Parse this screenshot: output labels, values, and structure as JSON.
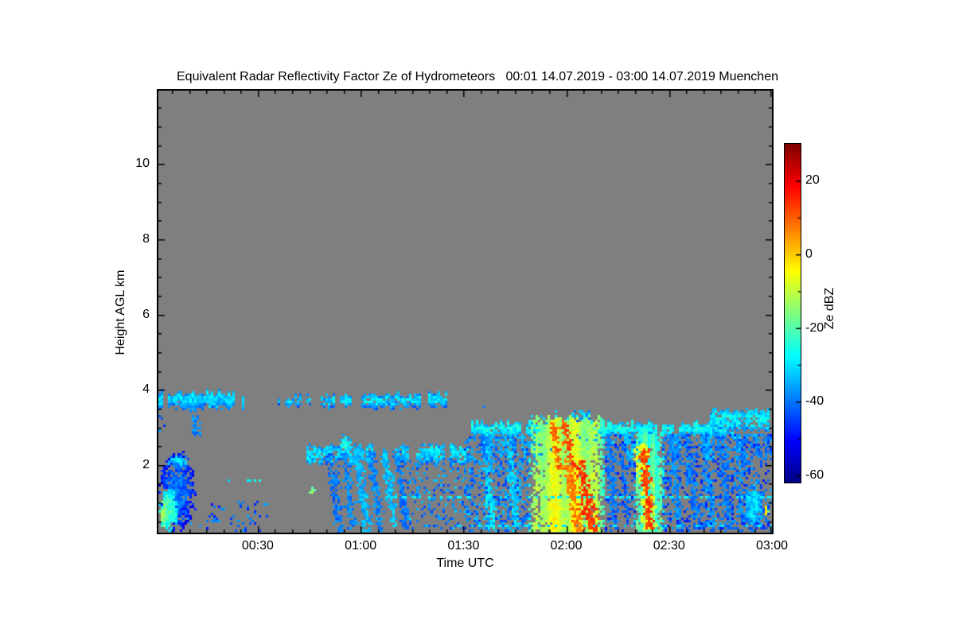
{
  "chart_data": {
    "type": "heatmap",
    "title": "Equivalent Radar Reflectivity Factor Ze of Hydrometeors   00:01 14.07.2019 - 03:00 14.07.2019 Muenchen",
    "xlabel": "Time UTC",
    "ylabel": "Height AGL km",
    "colorbar_label": "Ze dBZ",
    "location": "Muenchen",
    "time_start": "00:01 14.07.2019",
    "time_end": "03:00 14.07.2019",
    "x_range_minutes": [
      1,
      180
    ],
    "y_range_km": [
      0.2,
      11.95
    ],
    "x_ticks": [
      {
        "label": "00:30",
        "t": 30
      },
      {
        "label": "01:00",
        "t": 60
      },
      {
        "label": "01:30",
        "t": 90
      },
      {
        "label": "02:00",
        "t": 120
      },
      {
        "label": "02:30",
        "t": 150
      },
      {
        "label": "03:00",
        "t": 180
      }
    ],
    "x_major_ticks_minutes": [
      30,
      60,
      90,
      120,
      150,
      180
    ],
    "x_minor_step_minutes": 5,
    "y_ticks": [
      {
        "label": "10",
        "h": 10
      },
      {
        "label": "8",
        "h": 8
      },
      {
        "label": "6",
        "h": 6
      },
      {
        "label": "4",
        "h": 4
      },
      {
        "label": "2",
        "h": 2
      }
    ],
    "y_major_ticks_km": [
      2,
      4,
      6,
      8,
      10
    ],
    "y_minor_step_km": 0.5,
    "no_data_color": "#7f7f7f",
    "axis_color": "#000000",
    "background_color": "#ffffff",
    "colorbar": {
      "range_dbz": [
        -62,
        30
      ],
      "ticks": [
        {
          "label": "20",
          "v": 20
        },
        {
          "label": "0",
          "v": 0
        },
        {
          "label": "-20",
          "v": -20
        },
        {
          "label": "-40",
          "v": -40
        },
        {
          "label": "-60",
          "v": -60
        }
      ],
      "minor_ticks": [
        10,
        -10,
        -30,
        -50
      ]
    },
    "colormap_stops": [
      {
        "v": -62,
        "color": "#000083"
      },
      {
        "v": -50.5,
        "color": "#0000ff"
      },
      {
        "v": -27.5,
        "color": "#00ffff"
      },
      {
        "v": -4.5,
        "color": "#ffff00"
      },
      {
        "v": 18.5,
        "color": "#ff0000"
      },
      {
        "v": 30,
        "color": "#800000"
      }
    ],
    "features": [
      {
        "type": "layer",
        "t": [
          1,
          27
        ],
        "h": [
          3.55,
          3.92
        ],
        "v": -31,
        "density": 0.95,
        "gap": 0.05
      },
      {
        "type": "streak",
        "line": [
          11,
          3.6,
          11.8,
          2.78
        ],
        "w": 5,
        "v": -38,
        "density": 0.85
      },
      {
        "type": "layer",
        "t": [
          33.5,
          36
        ],
        "h": [
          3.62,
          3.8
        ],
        "v": -33,
        "density": 0.5,
        "gap": 0.3
      },
      {
        "type": "layer",
        "t": [
          38,
          52
        ],
        "h": [
          3.58,
          3.85
        ],
        "v": -32,
        "density": 0.65,
        "gap": 0.22
      },
      {
        "type": "layer",
        "t": [
          52,
          85
        ],
        "h": [
          3.55,
          3.88
        ],
        "v": -31,
        "density": 0.9,
        "gap": 0.08
      },
      {
        "type": "layer",
        "t": [
          92,
          99
        ],
        "h": [
          3.45,
          3.72
        ],
        "v": -35,
        "density": 0.4,
        "gap": 0.3
      },
      {
        "type": "layer",
        "t": [
          44,
          91
        ],
        "h": [
          2.08,
          2.5
        ],
        "v": -30,
        "density": 0.85,
        "gap": 0.12
      },
      {
        "type": "blob",
        "t": [
          53.5,
          57.5
        ],
        "h": [
          2.2,
          2.88
        ],
        "v": -26,
        "density": 0.9
      },
      {
        "type": "layer",
        "t": [
          91,
          101
        ],
        "h": [
          2.15,
          2.35
        ],
        "v": -32,
        "density": 0.4,
        "gap": 0.3
      },
      {
        "type": "blob",
        "t": [
          1,
          11.5
        ],
        "h": [
          0.25,
          2.35
        ],
        "v": -40,
        "density": 0.92
      },
      {
        "type": "blob",
        "t": [
          1,
          6.5
        ],
        "h": [
          0.25,
          1.45
        ],
        "v": -21,
        "density": 1
      },
      {
        "type": "blob",
        "t": [
          1,
          3.5
        ],
        "h": [
          0.3,
          1.2
        ],
        "v": -14,
        "density": 1
      },
      {
        "type": "blob",
        "t": [
          3,
          9.5
        ],
        "h": [
          1.95,
          2.32
        ],
        "v": -30,
        "density": 0.85
      },
      {
        "type": "speckle",
        "t": [
          9,
          34
        ],
        "h": [
          0.25,
          1.05
        ],
        "v": -42,
        "density": 0.09
      },
      {
        "type": "dashes",
        "t": [
          17,
          31
        ],
        "h": 1.6,
        "v": -28,
        "density": 0.4
      },
      {
        "type": "speckle",
        "t": [
          1,
          3
        ],
        "h": [
          2.5,
          3.3
        ],
        "v": -42,
        "density": 0.2
      },
      {
        "type": "streak",
        "line": [
          51,
          2.3,
          53.5,
          0.25
        ],
        "w": 7,
        "v": -40,
        "density": 0.8
      },
      {
        "type": "streak",
        "line": [
          55,
          2.4,
          57.5,
          0.3
        ],
        "w": 5,
        "v": -38,
        "density": 0.75
      },
      {
        "type": "streak",
        "line": [
          58.5,
          2.45,
          61.5,
          0.3
        ],
        "w": 7,
        "v": -34,
        "density": 0.85
      },
      {
        "type": "streak",
        "line": [
          62.5,
          2.4,
          65.5,
          0.3
        ],
        "w": 6,
        "v": -38,
        "density": 0.8
      },
      {
        "type": "streak",
        "line": [
          66.5,
          2.45,
          69.5,
          0.4
        ],
        "w": 6,
        "v": -33,
        "density": 0.85
      },
      {
        "type": "streak",
        "line": [
          70.5,
          2.4,
          73,
          0.3
        ],
        "w": 5,
        "v": -40,
        "density": 0.75
      },
      {
        "type": "speckle",
        "t": [
          73,
          90
        ],
        "h": [
          0.3,
          2.2
        ],
        "v": -38,
        "density": 0.2
      },
      {
        "type": "blob",
        "t": [
          45,
          46
        ],
        "h": [
          1.25,
          1.45
        ],
        "v": -12,
        "density": 1
      },
      {
        "type": "speckle",
        "t": [
          90,
          109.5
        ],
        "h": [
          0.25,
          2.75
        ],
        "v": -39,
        "density": 0.4
      },
      {
        "type": "streak",
        "line": [
          96,
          2.7,
          98,
          0.3
        ],
        "w": 6,
        "v": -30,
        "density": 0.8
      },
      {
        "type": "streak",
        "line": [
          103,
          2.7,
          105,
          0.4
        ],
        "w": 6,
        "v": -32,
        "density": 0.8
      },
      {
        "type": "layer",
        "t": [
          92,
          168
        ],
        "h": [
          2.8,
          3.12
        ],
        "v": -27,
        "density": 0.95,
        "gap": 0.04
      },
      {
        "type": "layer",
        "t": [
          162,
          180
        ],
        "h": [
          2.95,
          3.45
        ],
        "v": -29,
        "density": 0.9,
        "gap": 0.06
      },
      {
        "type": "virga",
        "t": [
          95,
          180
        ],
        "htop": 2.82,
        "hbot": [
          1.85,
          2.6
        ],
        "n": 34,
        "v": -36
      },
      {
        "type": "shaft",
        "t": [
          109,
          131
        ],
        "h": [
          0.25,
          3.25
        ],
        "core_v": -9,
        "edge_v": -31
      },
      {
        "type": "layer",
        "t": [
          110,
          131
        ],
        "h": [
          3.2,
          3.42
        ],
        "v": -30,
        "density": 0.45,
        "gap": 0.25
      },
      {
        "type": "streak",
        "line": [
          116,
          3.15,
          117.5,
          1.9
        ],
        "w": 4,
        "v": 9,
        "density": 0.9
      },
      {
        "type": "streak",
        "line": [
          119,
          3.2,
          121,
          2.1
        ],
        "w": 5,
        "v": 11,
        "density": 0.9
      },
      {
        "type": "streak",
        "line": [
          120,
          2.2,
          123.5,
          0.25
        ],
        "w": 7,
        "v": 7,
        "density": 0.9
      },
      {
        "type": "streak",
        "line": [
          123.5,
          2.1,
          127.5,
          0.25
        ],
        "w": 9,
        "v": 13,
        "density": 0.95
      },
      {
        "type": "speckle",
        "t": [
          131,
          140
        ],
        "h": [
          0.3,
          2.85
        ],
        "v": -43,
        "density": 0.22
      },
      {
        "type": "streak",
        "line": [
          132,
          2.8,
          134,
          0.3
        ],
        "w": 5,
        "v": -40,
        "density": 0.7
      },
      {
        "type": "streak",
        "line": [
          135.5,
          2.8,
          137.5,
          0.4
        ],
        "w": 4,
        "v": -42,
        "density": 0.7
      },
      {
        "type": "shaft",
        "t": [
          139.5,
          148
        ],
        "h": [
          0.25,
          2.85
        ],
        "core_v": -20,
        "edge_v": -36
      },
      {
        "type": "streak",
        "line": [
          141.5,
          2.55,
          144,
          0.3
        ],
        "w": 10,
        "v": -7,
        "density": 0.9
      },
      {
        "type": "streak",
        "line": [
          142.3,
          2.45,
          144.3,
          0.3
        ],
        "w": 5,
        "v": 12,
        "density": 0.95
      },
      {
        "type": "speckle",
        "t": [
          148,
          180
        ],
        "h": [
          0.25,
          2.8
        ],
        "v": -42,
        "density": 0.32
      },
      {
        "type": "streak",
        "line": [
          150,
          2.75,
          153,
          0.3
        ],
        "w": 5,
        "v": -38,
        "density": 0.7
      },
      {
        "type": "streak",
        "line": [
          155,
          2.75,
          158,
          0.3
        ],
        "w": 5,
        "v": -40,
        "density": 0.7
      },
      {
        "type": "streak",
        "line": [
          159.5,
          2.75,
          162.5,
          0.4
        ],
        "w": 5,
        "v": -36,
        "density": 0.7
      },
      {
        "type": "streak",
        "line": [
          164.5,
          2.75,
          167.5,
          0.3
        ],
        "w": 5,
        "v": -40,
        "density": 0.7
      },
      {
        "type": "streak",
        "line": [
          169.5,
          2.75,
          171.5,
          0.5
        ],
        "w": 4,
        "v": -38,
        "density": 0.7
      },
      {
        "type": "blob",
        "t": [
          171.5,
          177
        ],
        "h": [
          0.25,
          1.6
        ],
        "v": -30,
        "density": 0.95
      },
      {
        "type": "dashes",
        "t": [
          68,
          180
        ],
        "h": 1.17,
        "v": -28,
        "density": 0.4
      },
      {
        "type": "dashes",
        "t": [
          88,
          180
        ],
        "h": 0.4,
        "v": -30,
        "density": 0.3
      },
      {
        "type": "blob",
        "t": [
          177,
          178.5
        ],
        "h": [
          0.7,
          0.9
        ],
        "v": 0,
        "density": 1
      }
    ]
  }
}
